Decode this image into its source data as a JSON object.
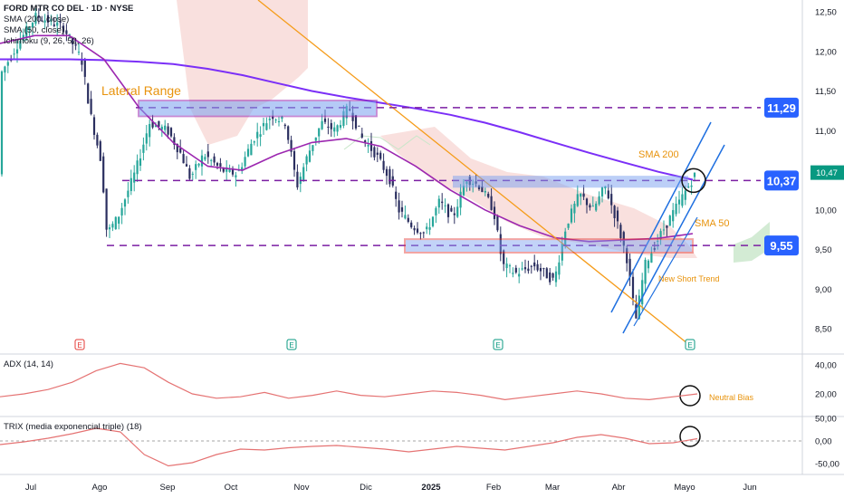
{
  "header": {
    "legend": [
      "FORD MTR CO DEL · 1D · NYSE",
      "SMA (200, close)",
      "SMA (50, close)",
      "Ichimoku (9, 26, 52, 26)"
    ]
  },
  "colors": {
    "up": "#26a69a",
    "down": "#2a2e5f",
    "sma200": "#7b2ff7",
    "sma50": "#9c27b0",
    "trendline": "#f59c1a",
    "channel": "#1e6fe0",
    "levels": "#7b1fa2",
    "box_fill": "#7aa0f0",
    "box_red": "#e53935",
    "cloud": "#f4c7c3",
    "cloud_green": "#c8e6c9",
    "adx": "#e57373",
    "trix": "#e57373",
    "badge": "#2962ff",
    "price_now": "#089981",
    "annotation": "#e8930c"
  },
  "chart_data": [
    {
      "type": "candlestick",
      "title": "FORD MTR CO DEL · 1D · NYSE",
      "x_ticks": [
        "Jul",
        "Ago",
        "Sep",
        "Oct",
        "Nov",
        "Dic",
        "2025",
        "Feb",
        "Mar",
        "Abr",
        "Mayo",
        "Jun"
      ],
      "y_ticks": [
        "12,50",
        "12,00",
        "11,50",
        "11,00",
        "10,50",
        "10,00",
        "9,50",
        "9,00",
        "8,50"
      ],
      "ylim": [
        8.35,
        12.55
      ],
      "series": [
        {
          "name": "SMA (200, close)",
          "values": [
            11.9,
            11.9,
            11.9,
            11.89,
            11.87,
            11.84,
            11.78,
            11.7,
            11.6,
            11.5,
            11.42,
            11.35,
            11.28,
            11.2,
            11.1,
            10.98,
            10.85,
            10.72,
            10.6,
            10.48,
            10.38
          ]
        },
        {
          "name": "SMA (50, close)",
          "values": [
            12.1,
            12.2,
            12.2,
            11.9,
            11.3,
            10.85,
            10.55,
            10.5,
            10.7,
            10.85,
            10.9,
            10.8,
            10.55,
            10.25,
            10.0,
            9.8,
            9.65,
            9.6,
            9.62,
            9.64,
            9.7
          ]
        }
      ],
      "levels": [
        {
          "label": "11,29",
          "value": 11.29
        },
        {
          "label": "10,37",
          "value": 10.37
        },
        {
          "label": "9,55",
          "value": 9.55
        }
      ],
      "current_price": "10,47",
      "annotations": [
        "Lateral Range",
        "SMA 200",
        "SMA 50",
        "New Short Trend"
      ],
      "event_markers": [
        "E",
        "E",
        "E",
        "E"
      ]
    },
    {
      "type": "line",
      "title": "ADX (14, 14)",
      "y_ticks": [
        "40,00",
        "20,00"
      ],
      "annotation": "Neutral Bias",
      "values": [
        18,
        20,
        23,
        28,
        36,
        41,
        38,
        28,
        20,
        17,
        18,
        21,
        17,
        19,
        22,
        19,
        18,
        20,
        22,
        21,
        19,
        16,
        18,
        20,
        22,
        20,
        17,
        16,
        18,
        20
      ]
    },
    {
      "type": "line",
      "title": "TRIX (media exponencial triple) (18)",
      "y_ticks": [
        "50,00",
        "0,00",
        "-50,00"
      ],
      "values": [
        -8,
        -2,
        6,
        16,
        28,
        20,
        -30,
        -55,
        -48,
        -30,
        -18,
        -20,
        -15,
        -12,
        -10,
        -14,
        -18,
        -24,
        -18,
        -12,
        -16,
        -20,
        -12,
        -4,
        8,
        14,
        6,
        -6,
        -4,
        5
      ]
    }
  ]
}
